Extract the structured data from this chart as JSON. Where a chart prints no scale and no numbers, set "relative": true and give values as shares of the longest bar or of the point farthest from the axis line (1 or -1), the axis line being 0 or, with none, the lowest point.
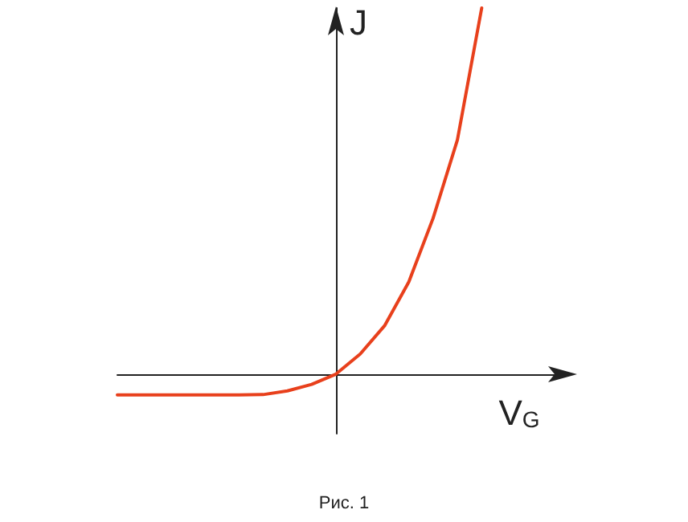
{
  "chart_data": {
    "type": "line",
    "relative": true,
    "xlabel": "V$_{G}$",
    "ylabel": "J",
    "annotations": [
      "Рис. 1"
    ],
    "categories": [
      null,
      null,
      null,
      null,
      null,
      null,
      null,
      null,
      null,
      null,
      null,
      null,
      null,
      null,
      null,
      null,
      null,
      null,
      null
    ],
    "series": [
      {
        "color": "#e8401c",
        "values": [
          -0.057,
          -0.057,
          -0.057,
          -0.057,
          -0.057,
          -0.057,
          -0.056,
          -0.046,
          -0.028,
          0,
          0.055,
          0.132,
          0.252,
          0.426,
          0.64,
          1,
          null,
          null,
          null
        ]
      }
    ],
    "grid": false,
    "marker": "none",
    "line_style": "solid"
  }
}
